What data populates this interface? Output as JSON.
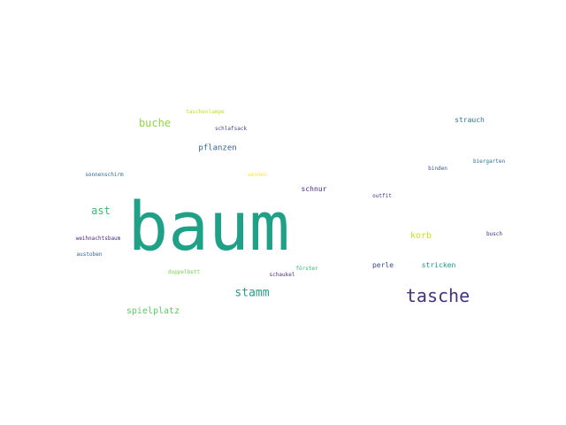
{
  "words": [
    {
      "text": "baum",
      "color": "#1fa187"
    },
    {
      "text": "tasche",
      "color": "#46327e"
    },
    {
      "text": "stamm",
      "color": "#2a9a8a"
    },
    {
      "text": "ast",
      "color": "#3bbb75"
    },
    {
      "text": "buche",
      "color": "#8fd744"
    },
    {
      "text": "korb",
      "color": "#c9e020"
    },
    {
      "text": "spielplatz",
      "color": "#5ec962"
    },
    {
      "text": "pflanzen",
      "color": "#33638d"
    },
    {
      "text": "strauch",
      "color": "#2a788e"
    },
    {
      "text": "stricken",
      "color": "#21918c"
    },
    {
      "text": "schnur",
      "color": "#472d7b"
    },
    {
      "text": "perle",
      "color": "#3e4989"
    },
    {
      "text": "taschenlampe",
      "color": "#bddf26"
    },
    {
      "text": "schlafsack",
      "color": "#414487"
    },
    {
      "text": "sonnenschirm",
      "color": "#31688e"
    },
    {
      "text": "weinen",
      "color": "#fde725"
    },
    {
      "text": "binden",
      "color": "#3b528b"
    },
    {
      "text": "biergarten",
      "color": "#2c728e"
    },
    {
      "text": "outfit",
      "color": "#443983"
    },
    {
      "text": "weihnachtsbaum",
      "color": "#482878"
    },
    {
      "text": "busch",
      "color": "#472c7a"
    },
    {
      "text": "austoben",
      "color": "#355f8d"
    },
    {
      "text": "doppelbett",
      "color": "#7ad151"
    },
    {
      "text": "förster",
      "color": "#35b779"
    },
    {
      "text": "schaukel",
      "color": "#46307e"
    }
  ]
}
